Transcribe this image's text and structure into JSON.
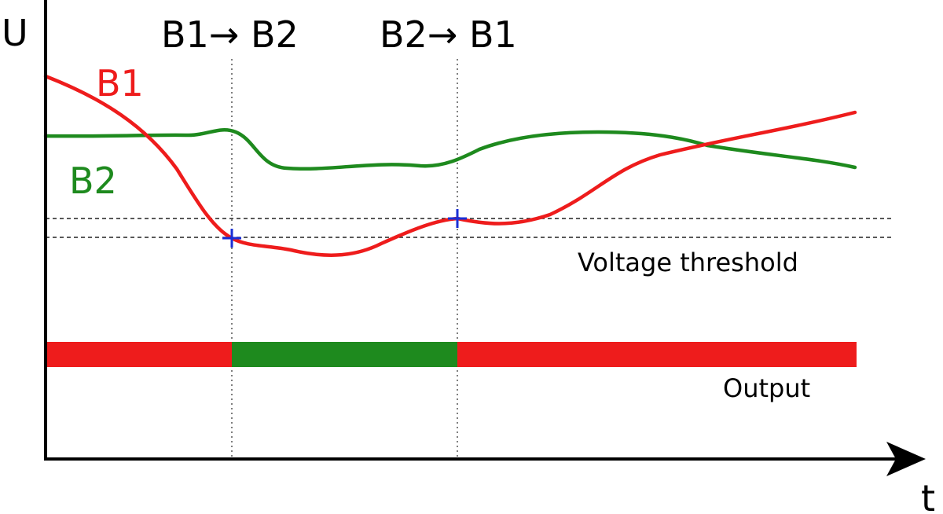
{
  "axes": {
    "y_label": "U",
    "x_label": "t"
  },
  "transitions": {
    "first": "B1→ B2",
    "second": "B2→ B1"
  },
  "series": {
    "b1": {
      "name": "B1",
      "color": "#ee1c1c"
    },
    "b2": {
      "name": "B2",
      "color": "#1e8a1e"
    }
  },
  "threshold": {
    "label": "Voltage threshold"
  },
  "output": {
    "label": "Output",
    "segments": [
      {
        "source": "B1",
        "color": "#ee1c1c"
      },
      {
        "source": "B2",
        "color": "#1e8a1e"
      },
      {
        "source": "B1",
        "color": "#ee1c1c"
      }
    ]
  },
  "marker_color": "#1a2fd6"
}
